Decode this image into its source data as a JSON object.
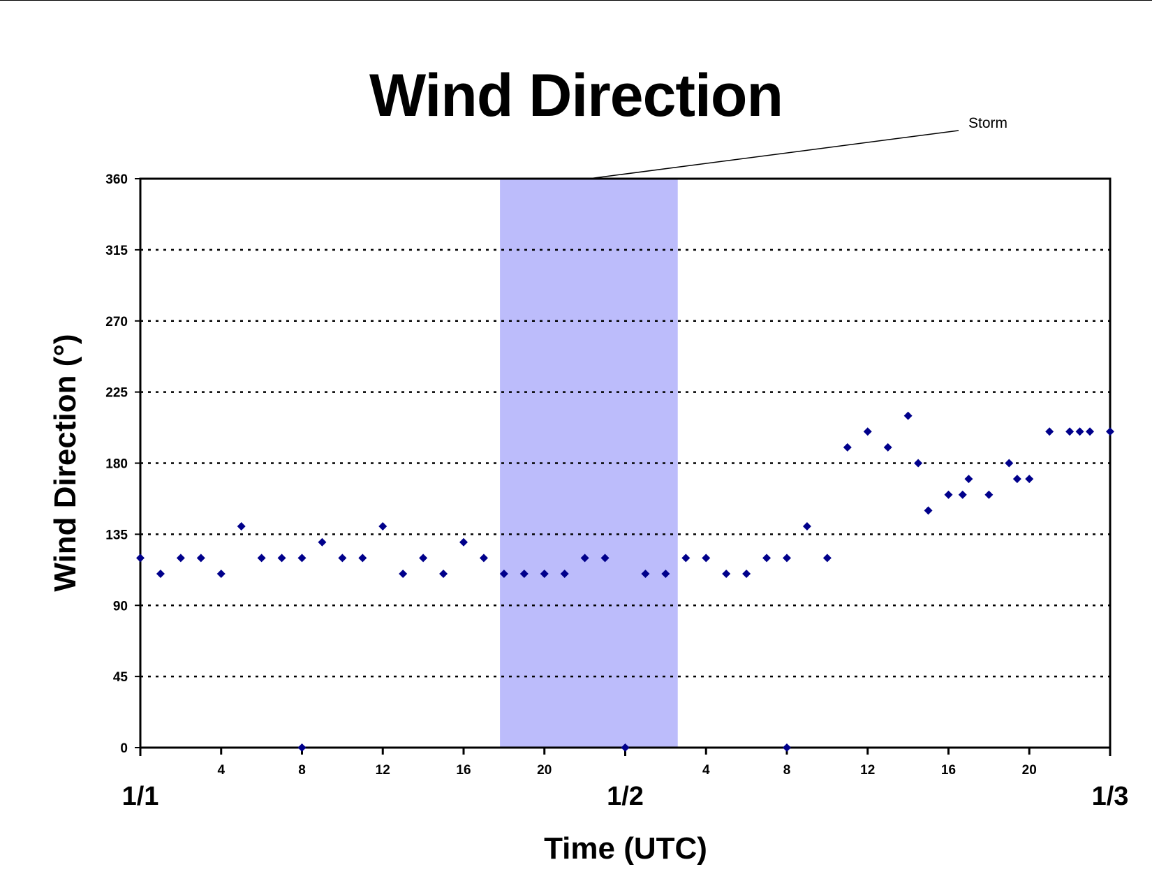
{
  "chart_data": {
    "type": "scatter",
    "title": "Wind Direction",
    "xlabel": "Time (UTC)",
    "ylabel": "Wind Direction (°)",
    "x_unit": "hours from 1/1 00 UTC",
    "xlim": [
      0,
      48
    ],
    "ylim": [
      0,
      360
    ],
    "y_ticks": [
      0,
      45,
      90,
      135,
      180,
      225,
      270,
      315,
      360
    ],
    "x_hour_ticks": [
      {
        "x": 4,
        "label": "4"
      },
      {
        "x": 8,
        "label": "8"
      },
      {
        "x": 12,
        "label": "12"
      },
      {
        "x": 16,
        "label": "16"
      },
      {
        "x": 20,
        "label": "20"
      },
      {
        "x": 28,
        "label": "4"
      },
      {
        "x": 32,
        "label": "8"
      },
      {
        "x": 36,
        "label": "12"
      },
      {
        "x": 40,
        "label": "16"
      },
      {
        "x": 44,
        "label": "20"
      }
    ],
    "x_day_ticks": [
      {
        "x": 0,
        "label": "1/1"
      },
      {
        "x": 24,
        "label": "1/2"
      },
      {
        "x": 48,
        "label": "1/3"
      }
    ],
    "grid": "horizontal dotted",
    "marker_color": "#00008b",
    "shaded_region": {
      "x_start": 17.8,
      "x_end": 26.6,
      "color": "#bcbcfb",
      "label": "Storm"
    },
    "points": [
      {
        "x": 0,
        "y": 120
      },
      {
        "x": 1,
        "y": 110
      },
      {
        "x": 2,
        "y": 120
      },
      {
        "x": 3,
        "y": 120
      },
      {
        "x": 4,
        "y": 110
      },
      {
        "x": 5,
        "y": 140
      },
      {
        "x": 6,
        "y": 120
      },
      {
        "x": 7,
        "y": 120
      },
      {
        "x": 8,
        "y": 120
      },
      {
        "x": 8,
        "y": 0
      },
      {
        "x": 9,
        "y": 130
      },
      {
        "x": 10,
        "y": 120
      },
      {
        "x": 11,
        "y": 120
      },
      {
        "x": 12,
        "y": 140
      },
      {
        "x": 13,
        "y": 110
      },
      {
        "x": 14,
        "y": 120
      },
      {
        "x": 15,
        "y": 110
      },
      {
        "x": 16,
        "y": 130
      },
      {
        "x": 17,
        "y": 120
      },
      {
        "x": 18,
        "y": 110
      },
      {
        "x": 19,
        "y": 110
      },
      {
        "x": 20,
        "y": 110
      },
      {
        "x": 21,
        "y": 110
      },
      {
        "x": 22,
        "y": 120
      },
      {
        "x": 23,
        "y": 120
      },
      {
        "x": 24,
        "y": 0
      },
      {
        "x": 25,
        "y": 110
      },
      {
        "x": 26,
        "y": 110
      },
      {
        "x": 27,
        "y": 120
      },
      {
        "x": 28,
        "y": 120
      },
      {
        "x": 29,
        "y": 110
      },
      {
        "x": 30,
        "y": 110
      },
      {
        "x": 31,
        "y": 120
      },
      {
        "x": 32,
        "y": 120
      },
      {
        "x": 32,
        "y": 0
      },
      {
        "x": 33,
        "y": 140
      },
      {
        "x": 34,
        "y": 120
      },
      {
        "x": 35,
        "y": 190
      },
      {
        "x": 36,
        "y": 200
      },
      {
        "x": 37,
        "y": 190
      },
      {
        "x": 38,
        "y": 210
      },
      {
        "x": 38.5,
        "y": 180
      },
      {
        "x": 39,
        "y": 150
      },
      {
        "x": 40,
        "y": 160
      },
      {
        "x": 40.7,
        "y": 160
      },
      {
        "x": 41,
        "y": 170
      },
      {
        "x": 42,
        "y": 160
      },
      {
        "x": 43,
        "y": 180
      },
      {
        "x": 43.4,
        "y": 170
      },
      {
        "x": 44,
        "y": 170
      },
      {
        "x": 45,
        "y": 200
      },
      {
        "x": 46,
        "y": 200
      },
      {
        "x": 46.5,
        "y": 200
      },
      {
        "x": 47,
        "y": 200
      },
      {
        "x": 48,
        "y": 200
      }
    ]
  }
}
